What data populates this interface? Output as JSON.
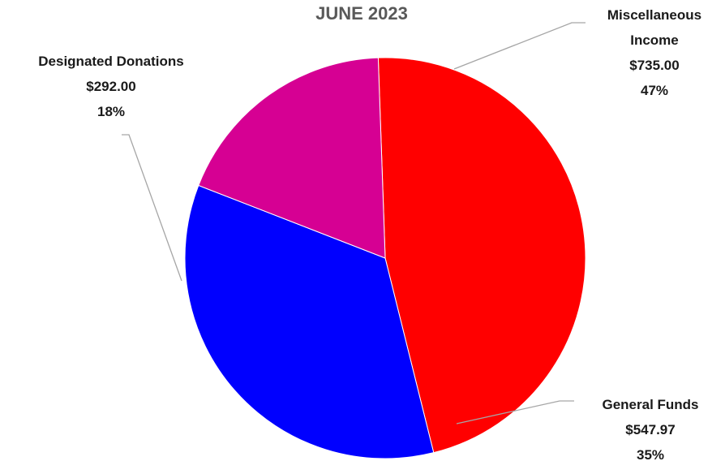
{
  "chart_data": {
    "type": "pie",
    "title": "JUNE 2023",
    "start_angle_deg": -2,
    "series": [
      {
        "name": "Income",
        "slices": [
          {
            "label_lines": [
              "Miscellaneous",
              "Income"
            ],
            "value": 735.0,
            "value_label": "$735.00",
            "percent_label": "47%",
            "color": "#ff0000"
          },
          {
            "label_lines": [
              "General Funds"
            ],
            "value": 547.97,
            "value_label": "$547.97",
            "percent_label": "35%",
            "color": "#0000ff"
          },
          {
            "label_lines": [
              "Designated Donations"
            ],
            "value": 292.0,
            "value_label": "$292.00",
            "percent_label": "18%",
            "color": "#d60093"
          }
        ]
      }
    ],
    "legend": "none",
    "data_labels": "outside-with-leader-lines"
  }
}
